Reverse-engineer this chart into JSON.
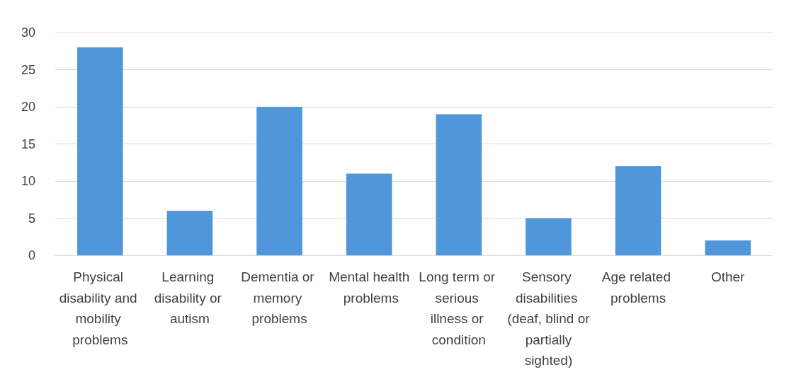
{
  "chart_data": {
    "type": "bar",
    "categories": [
      "Physical disability and mobility problems",
      "Learning disability or autism",
      "Dementia or memory problems",
      "Mental health problems",
      "Long term or serious illness or condition",
      "Sensory disabilities (deaf, blind or partially sighted)",
      "Age related problems",
      "Other"
    ],
    "values": [
      28,
      6,
      20,
      11,
      19,
      5,
      12,
      2
    ],
    "color": "#4f97da",
    "ylim": [
      0,
      30
    ],
    "yticks": [
      0,
      5,
      10,
      15,
      20,
      25,
      30
    ],
    "grid": "y"
  }
}
